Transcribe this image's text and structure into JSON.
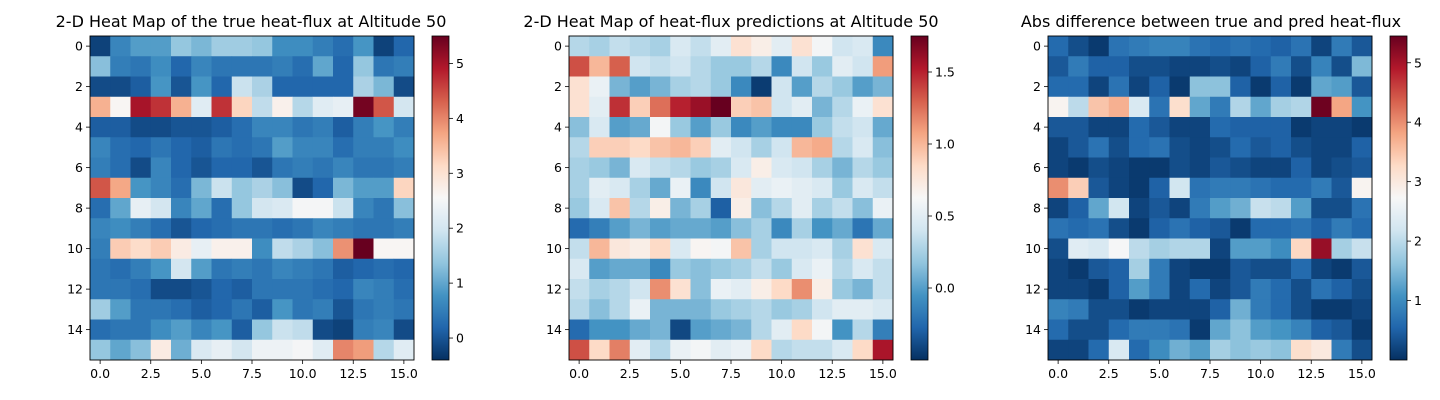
{
  "chart_data": [
    {
      "type": "heatmap",
      "title": "2-D Heat Map of the true heat-flux at Altitude 50",
      "xticks": [
        "0.0",
        "2.5",
        "5.0",
        "7.5",
        "10.0",
        "12.5",
        "15.0"
      ],
      "yticks": [
        "0",
        "2",
        "4",
        "6",
        "8",
        "10",
        "12",
        "14"
      ],
      "colorbar": {
        "ticks": [
          "0",
          "1",
          "2",
          "3",
          "4",
          "5"
        ],
        "tick_values": [
          0,
          1,
          2,
          3,
          4,
          5
        ],
        "range": [
          -0.4,
          5.5
        ]
      },
      "colormap": "RdBu_r",
      "grid": "off",
      "z": [
        [
          -0.2,
          0.6,
          0.9,
          0.9,
          1.4,
          1.2,
          1.5,
          1.5,
          1.4,
          0.7,
          0.7,
          0.5,
          0.3,
          0.8,
          -0.2,
          0.2
        ],
        [
          1.3,
          0.5,
          0.4,
          0.7,
          0.2,
          0.6,
          0.4,
          0.4,
          0.4,
          0.5,
          0.3,
          1.0,
          0.2,
          1.4,
          0.4,
          0.5
        ],
        [
          -0.1,
          -0.1,
          0.1,
          0.8,
          0.0,
          0.8,
          0.2,
          1.9,
          1.6,
          0.2,
          0.2,
          0.2,
          0.2,
          1.6,
          1.2,
          -0.1
        ],
        [
          3.6,
          2.6,
          5.0,
          4.7,
          3.6,
          2.2,
          4.7,
          3.2,
          1.8,
          2.7,
          1.7,
          2.2,
          2.3,
          5.4,
          4.4,
          2.0
        ],
        [
          0.1,
          0.1,
          -0.1,
          -0.1,
          0.0,
          0.0,
          0.1,
          0.3,
          0.6,
          0.6,
          0.4,
          0.5,
          0.1,
          0.5,
          0.8,
          0.5
        ],
        [
          0.6,
          0.3,
          0.2,
          0.4,
          0.2,
          0.1,
          0.4,
          0.3,
          0.4,
          0.9,
          0.6,
          0.6,
          0.3,
          0.5,
          0.5,
          0.7
        ],
        [
          0.5,
          0.3,
          -0.1,
          0.6,
          0.2,
          0.0,
          0.2,
          0.2,
          0.0,
          0.4,
          0.5,
          0.4,
          0.6,
          0.4,
          0.4,
          0.5
        ],
        [
          4.4,
          3.7,
          0.8,
          0.6,
          0.3,
          1.2,
          1.9,
          1.4,
          1.6,
          1.3,
          -0.1,
          0.2,
          1.2,
          0.9,
          0.9,
          3.2
        ],
        [
          0.3,
          1.0,
          2.3,
          2.0,
          0.6,
          1.0,
          0.3,
          1.4,
          2.0,
          2.1,
          2.5,
          2.5,
          1.9,
          0.6,
          0.4,
          1.3
        ],
        [
          0.6,
          0.7,
          0.5,
          0.3,
          0.0,
          0.2,
          0.3,
          0.4,
          0.4,
          0.3,
          0.4,
          0.6,
          0.5,
          0.4,
          0.4,
          0.5
        ],
        [
          0.5,
          3.3,
          3.1,
          3.3,
          2.8,
          2.3,
          2.7,
          2.7,
          0.7,
          1.8,
          1.6,
          1.3,
          3.9,
          5.5,
          2.6,
          2.6
        ],
        [
          0.4,
          0.3,
          0.5,
          0.8,
          2.0,
          0.9,
          0.4,
          0.5,
          0.4,
          0.6,
          0.5,
          0.4,
          0.1,
          0.2,
          0.3,
          0.2
        ],
        [
          0.4,
          0.4,
          0.3,
          -0.1,
          -0.1,
          0.0,
          0.2,
          0.1,
          0.4,
          0.4,
          0.4,
          0.3,
          0.2,
          0.6,
          0.5,
          0.3
        ],
        [
          1.5,
          0.9,
          0.4,
          0.4,
          0.3,
          0.1,
          0.2,
          0.4,
          0.1,
          0.8,
          0.4,
          0.5,
          0.0,
          0.4,
          0.5,
          0.4
        ],
        [
          0.3,
          0.4,
          0.4,
          0.7,
          0.9,
          0.6,
          0.8,
          0.1,
          1.4,
          1.9,
          1.8,
          -0.1,
          -0.2,
          0.5,
          0.6,
          -0.1
        ],
        [
          1.4,
          1.0,
          1.3,
          2.8,
          1.1,
          2.1,
          2.3,
          2.0,
          2.4,
          2.4,
          2.5,
          2.2,
          4.0,
          3.8,
          1.7,
          2.2
        ]
      ]
    },
    {
      "type": "heatmap",
      "title": "2-D Heat Map of heat-flux predictions at Altitude 50",
      "xticks": [
        "0.0",
        "2.5",
        "5.0",
        "7.5",
        "10.0",
        "12.5",
        "15.0"
      ],
      "yticks": [
        "0",
        "2",
        "4",
        "6",
        "8",
        "10",
        "12",
        "14"
      ],
      "colorbar": {
        "ticks": [
          "0.0",
          "0.5",
          "1.0",
          "1.5"
        ],
        "tick_values": [
          0.0,
          0.5,
          1.0,
          1.5
        ],
        "range": [
          -0.5,
          1.75
        ]
      },
      "colormap": "RdBu_r",
      "grid": "off",
      "z": [
        [
          0.3,
          0.25,
          0.35,
          0.3,
          0.25,
          0.45,
          0.35,
          0.5,
          0.8,
          0.7,
          0.5,
          0.8,
          0.6,
          0.4,
          0.45,
          -0.1
        ],
        [
          1.35,
          1.0,
          1.3,
          0.4,
          0.35,
          0.4,
          0.3,
          0.2,
          0.2,
          0.3,
          -0.1,
          0.4,
          0.2,
          0.5,
          0.4,
          1.1
        ],
        [
          0.8,
          0.55,
          0.1,
          0.0,
          0.1,
          0.25,
          0.3,
          0.2,
          -0.1,
          -0.45,
          0.4,
          0.0,
          0.3,
          0.2,
          0.0,
          0.1
        ],
        [
          0.8,
          0.5,
          1.45,
          0.9,
          1.25,
          1.5,
          1.6,
          1.75,
          0.9,
          0.95,
          0.4,
          0.5,
          0.1,
          0.3,
          0.55,
          0.8
        ],
        [
          0.15,
          0.45,
          0.0,
          0.05,
          0.6,
          0.2,
          0.0,
          0.2,
          -0.1,
          0.0,
          -0.1,
          -0.1,
          0.2,
          0.35,
          0.4,
          0.05
        ],
        [
          0.3,
          0.9,
          0.9,
          0.85,
          0.95,
          1.0,
          0.9,
          0.5,
          0.4,
          0.25,
          0.4,
          1.0,
          1.05,
          0.3,
          0.45,
          0.15
        ],
        [
          0.25,
          0.2,
          0.1,
          0.45,
          0.35,
          0.3,
          0.2,
          0.25,
          0.45,
          0.7,
          0.45,
          0.4,
          0.25,
          0.1,
          0.3,
          0.2
        ],
        [
          0.25,
          0.5,
          0.45,
          0.25,
          0.05,
          0.55,
          -0.1,
          0.4,
          0.75,
          0.5,
          0.55,
          0.5,
          0.45,
          0.2,
          0.45,
          0.35
        ],
        [
          0.2,
          0.45,
          0.95,
          0.3,
          0.7,
          0.1,
          0.25,
          -0.3,
          0.7,
          0.15,
          0.3,
          0.5,
          0.25,
          0.35,
          0.15,
          0.55
        ],
        [
          -0.25,
          -0.15,
          0.0,
          0.1,
          0.0,
          0.05,
          0.05,
          0.0,
          0.15,
          0.25,
          -0.1,
          0.25,
          -0.05,
          0.05,
          -0.2,
          0.05
        ],
        [
          0.35,
          1.0,
          0.75,
          0.7,
          0.85,
          0.45,
          0.65,
          0.6,
          0.95,
          0.25,
          0.4,
          0.4,
          0.45,
          0.25,
          0.8,
          0.45
        ],
        [
          0.45,
          0.0,
          0.05,
          0.05,
          -0.1,
          0.2,
          0.15,
          0.2,
          0.25,
          0.35,
          0.2,
          0.45,
          0.55,
          0.3,
          0.45,
          0.35
        ],
        [
          0.35,
          0.25,
          0.3,
          0.4,
          1.15,
          0.8,
          0.15,
          0.55,
          0.5,
          0.7,
          0.85,
          1.15,
          0.7,
          0.2,
          0.1,
          0.35
        ],
        [
          0.3,
          0.15,
          0.3,
          0.55,
          0.1,
          0.1,
          0.1,
          0.2,
          0.25,
          0.3,
          0.2,
          0.25,
          0.4,
          0.5,
          0.5,
          0.45
        ],
        [
          -0.25,
          -0.05,
          -0.05,
          0.05,
          0.1,
          -0.4,
          0.0,
          0.05,
          0.1,
          0.3,
          0.5,
          0.85,
          0.6,
          -0.05,
          0.3,
          -0.15
        ],
        [
          1.35,
          0.85,
          1.2,
          0.5,
          0.3,
          0.55,
          0.6,
          0.5,
          0.55,
          0.85,
          0.3,
          0.35,
          0.35,
          0.45,
          0.85,
          1.55
        ]
      ]
    },
    {
      "type": "heatmap",
      "title": "Abs difference between true and pred heat-flux",
      "xticks": [
        "0.0",
        "2.5",
        "5.0",
        "7.5",
        "10.0",
        "12.5",
        "15.0"
      ],
      "yticks": [
        "0",
        "2",
        "4",
        "6",
        "8",
        "10",
        "12",
        "14"
      ],
      "colorbar": {
        "ticks": [
          "1",
          "2",
          "3",
          "4",
          "5"
        ],
        "tick_values": [
          1,
          2,
          3,
          4,
          5
        ],
        "range": [
          0.0,
          5.45
        ]
      },
      "colormap": "RdBu_r",
      "grid": "off",
      "z": [
        [
          0.6,
          0.3,
          0.1,
          0.7,
          0.8,
          0.9,
          0.9,
          0.7,
          0.6,
          0.7,
          0.6,
          0.5,
          0.7,
          0.2,
          0.8,
          0.4
        ],
        [
          0.4,
          0.8,
          0.5,
          0.5,
          0.3,
          0.3,
          0.2,
          0.2,
          0.3,
          0.2,
          0.5,
          0.8,
          0.3,
          0.9,
          0.3,
          1.5
        ],
        [
          0.6,
          0.6,
          0.2,
          0.7,
          0.2,
          0.5,
          0.1,
          1.6,
          1.6,
          0.5,
          0.1,
          0.5,
          0.1,
          1.3,
          1.2,
          0.4
        ],
        [
          2.8,
          2.0,
          3.5,
          3.7,
          2.3,
          0.7,
          3.2,
          1.3,
          0.8,
          1.9,
          1.3,
          1.8,
          1.9,
          5.4,
          3.8,
          1.1
        ],
        [
          0.4,
          0.4,
          0.2,
          0.2,
          0.6,
          0.4,
          0.2,
          0.2,
          0.6,
          0.5,
          0.5,
          0.5,
          0.1,
          0.2,
          0.2,
          0.1
        ],
        [
          0.2,
          0.4,
          0.7,
          0.3,
          0.6,
          0.7,
          0.3,
          0.2,
          0.3,
          0.6,
          0.4,
          0.5,
          0.3,
          0.2,
          0.2,
          0.5
        ],
        [
          0.2,
          0.1,
          0.3,
          0.2,
          0.1,
          0.1,
          0.3,
          0.2,
          0.4,
          0.3,
          0.2,
          0.2,
          0.5,
          0.2,
          0.3,
          0.4
        ],
        [
          4.0,
          3.4,
          0.4,
          0.2,
          0.1,
          0.5,
          2.2,
          0.7,
          0.8,
          0.8,
          0.7,
          0.6,
          0.6,
          0.8,
          0.4,
          2.8
        ],
        [
          0.2,
          0.5,
          1.3,
          2.2,
          0.2,
          0.4,
          0.2,
          0.8,
          1.2,
          1.4,
          2.1,
          2.0,
          1.2,
          0.3,
          0.3,
          0.7
        ],
        [
          0.7,
          0.6,
          0.7,
          0.3,
          0.1,
          0.5,
          0.7,
          0.5,
          0.4,
          0.1,
          0.6,
          0.6,
          0.7,
          0.5,
          0.8,
          0.6
        ],
        [
          0.3,
          2.4,
          2.3,
          2.7,
          2.0,
          1.8,
          1.9,
          1.9,
          0.2,
          1.2,
          1.2,
          1.0,
          3.3,
          5.1,
          1.8,
          2.1
        ],
        [
          0.2,
          0.1,
          0.4,
          0.5,
          1.8,
          0.8,
          0.2,
          0.1,
          0.1,
          0.4,
          0.3,
          0.3,
          0.6,
          0.2,
          0.1,
          0.4
        ],
        [
          0.2,
          0.2,
          0.1,
          0.5,
          1.2,
          0.8,
          0.2,
          0.6,
          0.2,
          0.4,
          0.8,
          0.6,
          0.3,
          0.7,
          0.5,
          0.3
        ],
        [
          0.9,
          0.8,
          0.3,
          0.3,
          0.1,
          0.2,
          0.2,
          0.2,
          0.5,
          1.4,
          0.8,
          0.6,
          0.3,
          0.1,
          0.1,
          0.2
        ],
        [
          0.6,
          0.3,
          0.3,
          0.6,
          0.8,
          0.8,
          0.7,
          0.1,
          1.3,
          1.6,
          1.2,
          1.1,
          0.9,
          0.5,
          0.4,
          0.1
        ],
        [
          0.2,
          0.2,
          0.6,
          2.3,
          0.6,
          1.0,
          1.4,
          1.2,
          1.8,
          1.6,
          1.7,
          1.6,
          3.2,
          3.0,
          0.8,
          0.3
        ]
      ]
    }
  ]
}
